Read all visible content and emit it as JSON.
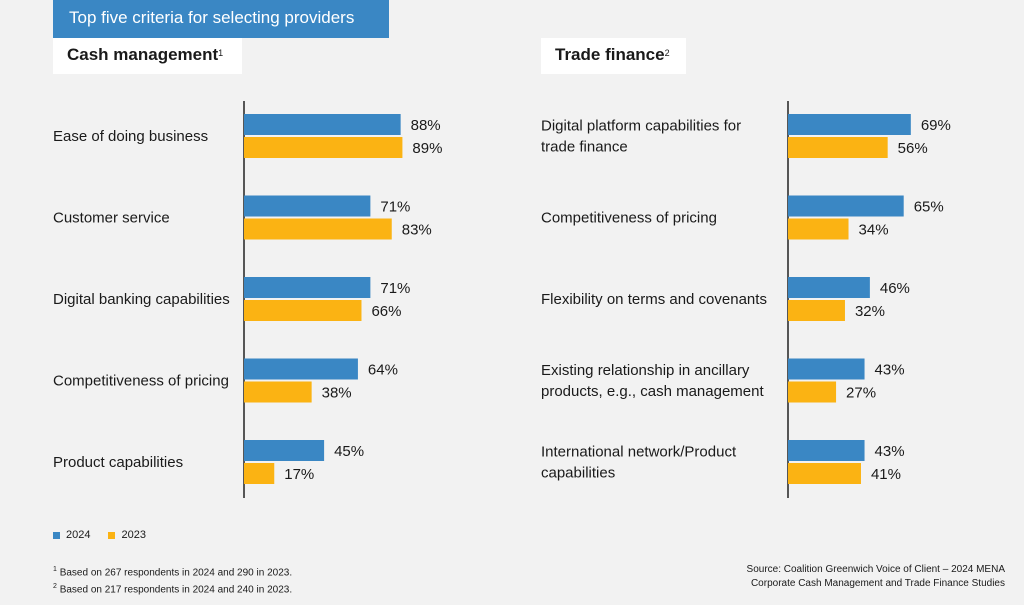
{
  "header": {
    "title": "Top five criteria for selecting providers"
  },
  "panels": {
    "cash": {
      "title": "Cash management",
      "note_mark": "1"
    },
    "trade": {
      "title": "Trade finance",
      "note_mark": "2"
    }
  },
  "legend": {
    "items": [
      {
        "label": "2024",
        "color": "#3a87c4"
      },
      {
        "label": "2023",
        "color": "#fbb313"
      }
    ]
  },
  "footnotes": {
    "note1": {
      "mark": "1",
      "text": "Based on 267 respondents in 2024 and 290 in 2023."
    },
    "note2": {
      "mark": "2",
      "text": "Based on 217 respondents in 2024 and 240 in 2023."
    }
  },
  "source": {
    "line1": "Source: Coalition Greenwich Voice of Client – 2024 MENA",
    "line2": "Corporate Cash Management and Trade Finance Studies"
  },
  "chart_data": [
    {
      "type": "bar",
      "orientation": "horizontal",
      "title": "Cash management",
      "categories": [
        [
          "Ease of doing business"
        ],
        [
          "Customer service"
        ],
        [
          "Digital banking capabilities"
        ],
        [
          "Competitiveness of pricing"
        ],
        [
          "Product capabilities"
        ]
      ],
      "series": [
        {
          "name": "2024",
          "color": "#3a87c4",
          "values": [
            88,
            71,
            71,
            64,
            45
          ]
        },
        {
          "name": "2023",
          "color": "#fbb313",
          "values": [
            89,
            83,
            66,
            38,
            17
          ]
        }
      ],
      "unit": "%",
      "xlim": [
        0,
        100
      ]
    },
    {
      "type": "bar",
      "orientation": "horizontal",
      "title": "Trade finance",
      "categories": [
        [
          "Digital platform capabilities for",
          "trade finance"
        ],
        [
          "Competitiveness of pricing"
        ],
        [
          "Flexibility on terms and covenants"
        ],
        [
          "Existing relationship in ancillary",
          "products, e.g., cash management"
        ],
        [
          "International network/Product",
          "capabilities"
        ]
      ],
      "series": [
        {
          "name": "2024",
          "color": "#3a87c4",
          "values": [
            69,
            65,
            46,
            43,
            43
          ]
        },
        {
          "name": "2023",
          "color": "#fbb313",
          "values": [
            56,
            34,
            32,
            27,
            41
          ]
        }
      ],
      "unit": "%",
      "xlim": [
        0,
        100
      ]
    }
  ]
}
